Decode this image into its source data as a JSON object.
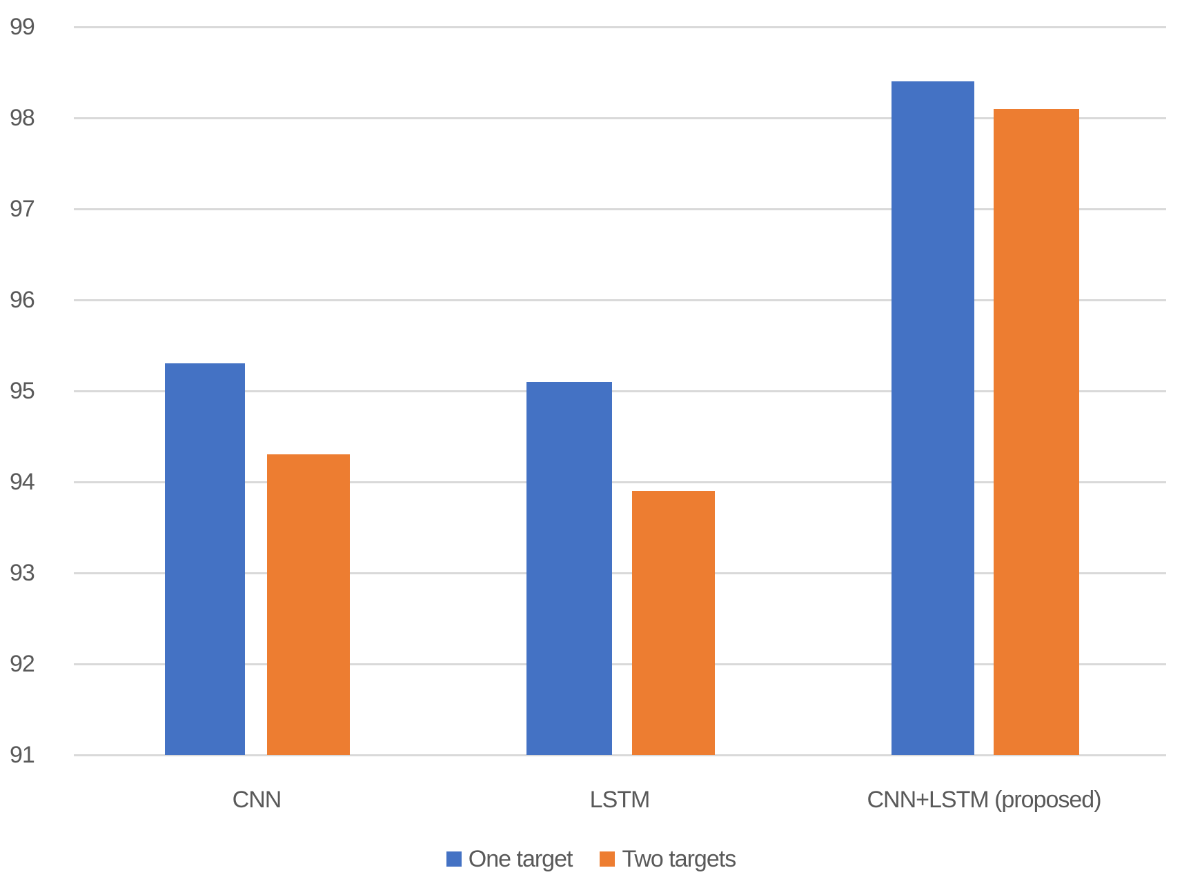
{
  "chart_data": {
    "type": "bar",
    "title": "",
    "xlabel": "",
    "ylabel": "",
    "categories": [
      "CNN",
      "LSTM",
      "CNN+LSTM (proposed)"
    ],
    "series": [
      {
        "name": "One target",
        "color": "#4472C4",
        "values": [
          95.3,
          95.1,
          98.4
        ]
      },
      {
        "name": "Two targets",
        "color": "#ED7D31",
        "values": [
          94.3,
          93.9,
          98.1
        ]
      }
    ],
    "ylim": [
      91,
      99
    ],
    "yticks": [
      91,
      92,
      93,
      94,
      95,
      96,
      97,
      98,
      99
    ],
    "grid": true,
    "legend_position": "bottom"
  },
  "legend": {
    "items": [
      {
        "label": "One target",
        "color": "#4472C4"
      },
      {
        "label": "Two targets",
        "color": "#ED7D31"
      }
    ]
  },
  "x_axis": {
    "labels": [
      "CNN",
      "LSTM",
      "CNN+LSTM (proposed)"
    ]
  },
  "y_axis": {
    "ticks": [
      "99",
      "98",
      "97",
      "96",
      "95",
      "94",
      "93",
      "92",
      "91"
    ]
  },
  "colors": {
    "gridline": "#D9D9D9",
    "text": "#595959"
  }
}
